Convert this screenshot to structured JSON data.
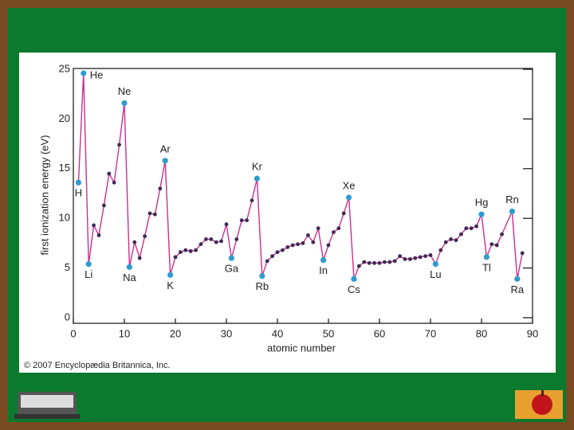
{
  "chart_data": {
    "type": "line",
    "xlabel": "atomic number",
    "ylabel": "first ionization energy (eV)",
    "credit": "© 2007 Encyclopædia Britannica, Inc.",
    "x": [
      1,
      2,
      3,
      4,
      5,
      6,
      7,
      8,
      9,
      10,
      11,
      12,
      13,
      14,
      15,
      16,
      17,
      18,
      19,
      20,
      21,
      22,
      23,
      24,
      25,
      26,
      27,
      28,
      29,
      30,
      31,
      32,
      33,
      34,
      35,
      36,
      37,
      38,
      39,
      40,
      41,
      42,
      43,
      44,
      45,
      46,
      47,
      48,
      49,
      50,
      51,
      52,
      53,
      54,
      55,
      56,
      57,
      58,
      59,
      60,
      61,
      62,
      63,
      64,
      65,
      66,
      67,
      68,
      69,
      70,
      71,
      72,
      73,
      74,
      75,
      76,
      77,
      78,
      79,
      80,
      81,
      82,
      83,
      84,
      86,
      87,
      88
    ],
    "values": [
      13.6,
      24.6,
      5.4,
      9.3,
      8.3,
      11.3,
      14.5,
      13.6,
      17.4,
      21.6,
      5.1,
      7.6,
      6.0,
      8.2,
      10.5,
      10.4,
      13.0,
      15.8,
      4.3,
      6.1,
      6.6,
      6.8,
      6.7,
      6.8,
      7.4,
      7.9,
      7.9,
      7.6,
      7.7,
      9.4,
      6.0,
      7.9,
      9.8,
      9.8,
      11.8,
      14.0,
      4.2,
      5.7,
      6.2,
      6.6,
      6.8,
      7.1,
      7.3,
      7.4,
      7.5,
      8.3,
      7.6,
      9.0,
      5.8,
      7.3,
      8.6,
      9.0,
      10.5,
      12.1,
      3.9,
      5.2,
      5.6,
      5.5,
      5.5,
      5.5,
      5.6,
      5.6,
      5.7,
      6.2,
      5.9,
      5.9,
      6.0,
      6.1,
      6.2,
      6.3,
      5.4,
      6.8,
      7.6,
      7.9,
      7.8,
      8.4,
      9.0,
      9.0,
      9.2,
      10.4,
      6.1,
      7.4,
      7.3,
      8.4,
      10.7,
      3.9,
      6.5
    ],
    "point_labels": [
      "H",
      "He",
      "Li",
      null,
      null,
      null,
      null,
      null,
      null,
      "Ne",
      "Na",
      null,
      null,
      null,
      null,
      null,
      null,
      "Ar",
      "K",
      null,
      null,
      null,
      null,
      null,
      null,
      null,
      null,
      null,
      null,
      null,
      "Ga",
      null,
      null,
      null,
      null,
      "Kr",
      "Rb",
      null,
      null,
      null,
      null,
      null,
      null,
      null,
      null,
      null,
      null,
      null,
      "In",
      null,
      null,
      null,
      null,
      "Xe",
      "Cs",
      null,
      null,
      null,
      null,
      null,
      null,
      null,
      null,
      null,
      null,
      null,
      null,
      null,
      null,
      null,
      "Lu",
      null,
      null,
      null,
      null,
      null,
      null,
      null,
      null,
      "Hg",
      "Tl",
      null,
      null,
      null,
      "Rn",
      "Ra",
      null
    ],
    "color": "#cc2f8f",
    "point_color": "#3f2a55",
    "highlight_color": "#2f9bd0",
    "xlim": [
      0,
      90
    ],
    "xticks": [
      0,
      10,
      20,
      30,
      40,
      50,
      60,
      70,
      80,
      90
    ],
    "ylim": [
      0,
      25
    ],
    "yticks": [
      0,
      5,
      10,
      15,
      20,
      25
    ]
  }
}
